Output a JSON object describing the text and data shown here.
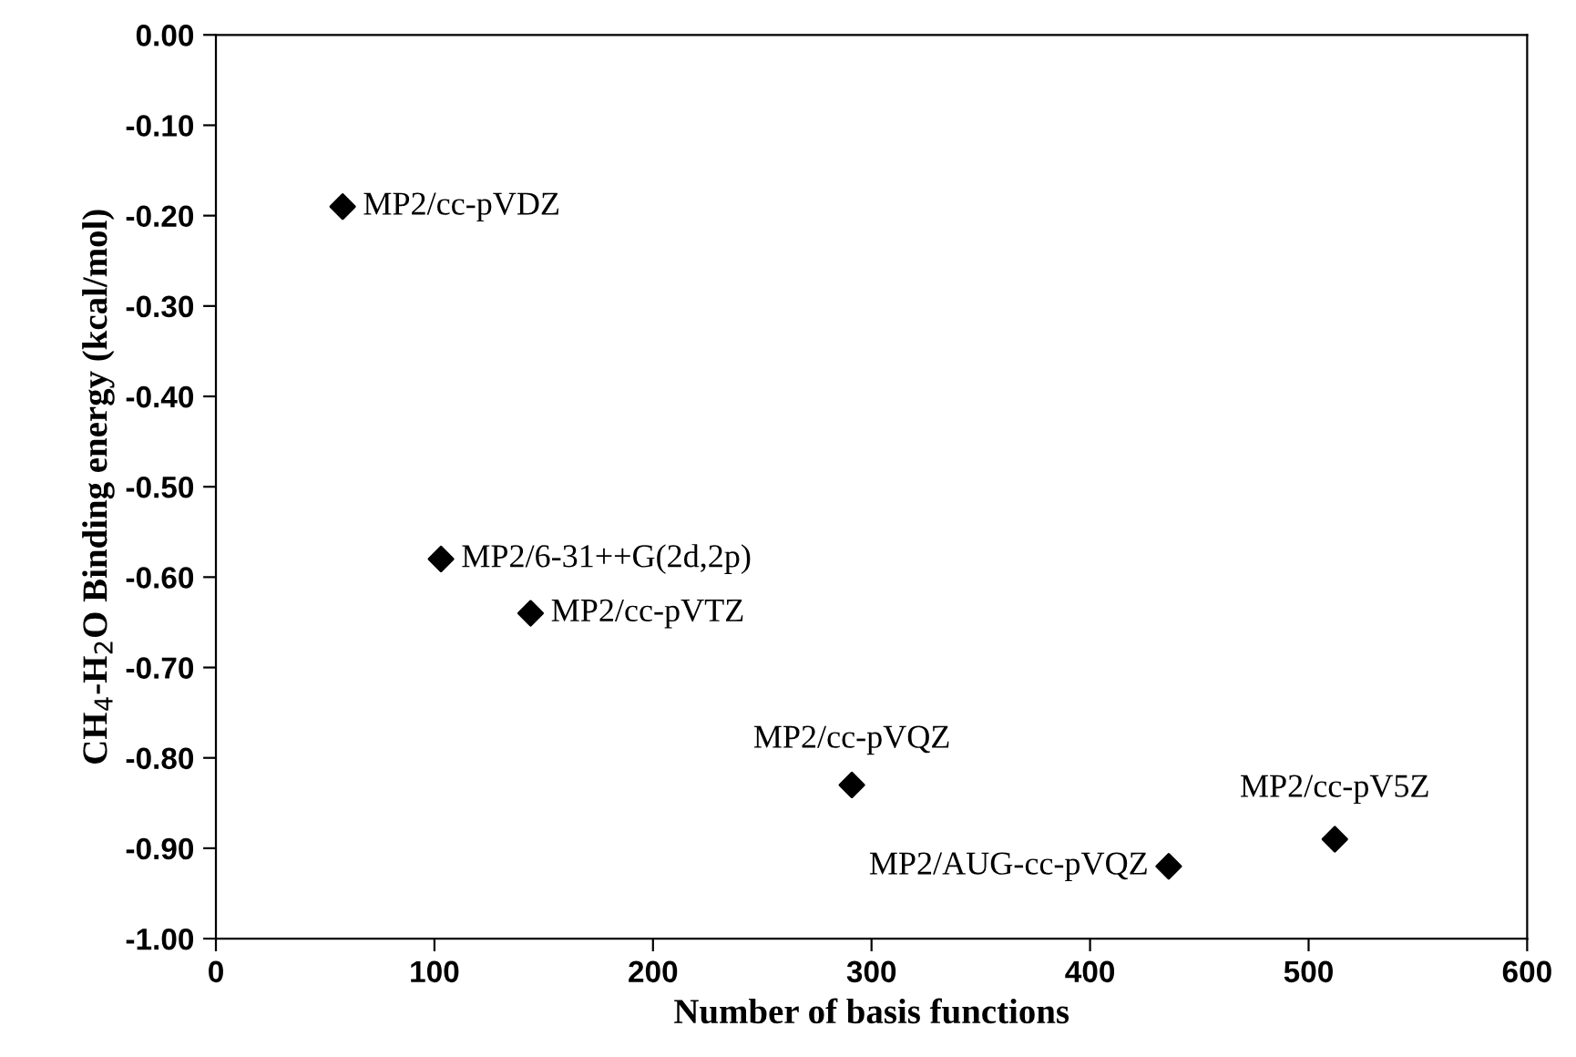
{
  "chart_data": {
    "type": "scatter",
    "xlabel": "Number of basis functions",
    "ylabel": "CH$_{4}$-H$_{2}$O Binding energy (kcal/mol)",
    "x": [
      58,
      103,
      144,
      291,
      436,
      512
    ],
    "values": [
      -0.19,
      -0.58,
      -0.64,
      -0.83,
      -0.92,
      -0.89
    ],
    "color": "#000000",
    "marker": "diamond",
    "xlim": [
      0,
      600
    ],
    "xticks": [
      0,
      100,
      200,
      300,
      400,
      500,
      600
    ],
    "ylim": [
      -1.0,
      0.0
    ],
    "yticks": [
      {
        "value": -1.0,
        "label": "-1.00"
      },
      {
        "value": -0.9,
        "label": "-0.90"
      },
      {
        "value": -0.8,
        "label": "-0.80"
      },
      {
        "value": -0.7,
        "label": "-0.70"
      },
      {
        "value": -0.6,
        "label": "-0.60"
      },
      {
        "value": -0.5,
        "label": "-0.50"
      },
      {
        "value": -0.4,
        "label": "-0.40"
      },
      {
        "value": -0.3,
        "label": "-0.30"
      },
      {
        "value": -0.2,
        "label": "-0.20"
      },
      {
        "value": -0.1,
        "label": "-0.10"
      },
      {
        "value": 0.0,
        "label": "0.00"
      }
    ],
    "grid": false,
    "annotations": [
      {
        "text": "MP2/cc-pVDZ",
        "x": 58,
        "y": -0.19
      },
      {
        "text": "MP2/6-31++G(2d,2p)",
        "x": 103,
        "y": -0.58
      },
      {
        "text": "MP2/cc-pVTZ",
        "x": 144,
        "y": -0.64
      },
      {
        "text": "MP2/cc-pVQZ",
        "x": 291,
        "y": -0.83
      },
      {
        "text": "MP2/AUG-cc-pVQZ",
        "x": 436,
        "y": -0.92
      },
      {
        "text": "MP2/cc-pV5Z",
        "x": 512,
        "y": -0.89
      }
    ]
  }
}
